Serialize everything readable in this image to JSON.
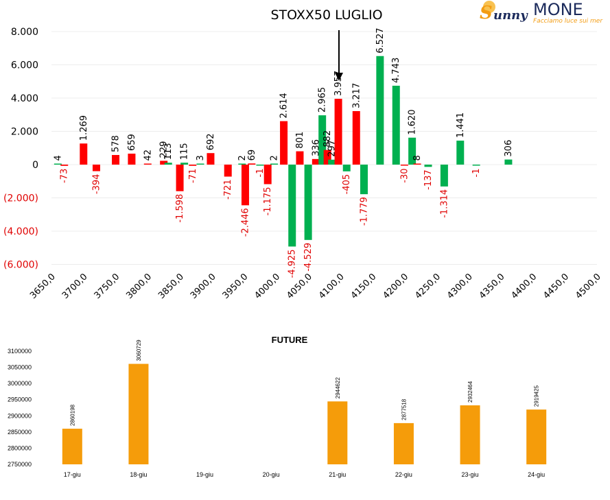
{
  "logo": {
    "brand_left": "unny",
    "brand_initial": "S",
    "brand_right": "MONE",
    "tagline": "Facciamo luce sui mer",
    "colors": {
      "orange": "#f39c12",
      "navy": "#1b2a5b"
    }
  },
  "chart_data": [
    {
      "type": "bar",
      "title": "STOXX50 LUGLIO",
      "annotation": "arrow pointing to strike 4100",
      "ylim": [
        -6000,
        8000
      ],
      "yticks": [
        {
          "value": 8000,
          "label": "8.000"
        },
        {
          "value": 6000,
          "label": "6.000"
        },
        {
          "value": 4000,
          "label": "4.000"
        },
        {
          "value": 2000,
          "label": "2.000"
        },
        {
          "value": 0,
          "label": "0"
        },
        {
          "value": -2000,
          "label": "(2.000)"
        },
        {
          "value": -4000,
          "label": "(4.000)"
        },
        {
          "value": -6000,
          "label": "(6.000)"
        }
      ],
      "categories": [
        "3650,0",
        "3700,0",
        "3750,0",
        "3800,0",
        "3850,0",
        "3900,0",
        "3950,0",
        "4000,0",
        "4050,0",
        "4100,0",
        "4150,0",
        "4200,0",
        "4250,0",
        "4300,0",
        "4350,0",
        "4400,0",
        "4450,0",
        "4500,0"
      ],
      "grid": true,
      "colors": {
        "call": "#ff0000",
        "put": "#00b050",
        "negative_label": "#e00000",
        "positive_label": "#000000"
      },
      "bars": [
        {
          "x": 3660,
          "value": 4,
          "label": "4",
          "color": "put"
        },
        {
          "x": 3670,
          "value": -73,
          "label": "-73",
          "color": "call"
        },
        {
          "x": 3700,
          "value": 1269,
          "label": "1.269",
          "color": "call"
        },
        {
          "x": 3720,
          "value": -394,
          "label": "-394",
          "color": "call"
        },
        {
          "x": 3750,
          "value": 578,
          "label": "578",
          "color": "call"
        },
        {
          "x": 3775,
          "value": 659,
          "label": "659",
          "color": "call"
        },
        {
          "x": 3800,
          "value": 42,
          "label": "42",
          "color": "call"
        },
        {
          "x": 3825,
          "value": 229,
          "label": "229",
          "color": "call"
        },
        {
          "x": 3832,
          "value": 113,
          "label": "113",
          "color": "put"
        },
        {
          "x": 3850,
          "value": -1598,
          "label": "-1.598",
          "color": "call"
        },
        {
          "x": 3857,
          "value": 115,
          "label": "115",
          "color": "put"
        },
        {
          "x": 3870,
          "value": -71,
          "label": "-71",
          "color": "call"
        },
        {
          "x": 3882,
          "value": 3,
          "label": "3",
          "color": "put"
        },
        {
          "x": 3898,
          "value": 692,
          "label": "692",
          "color": "call"
        },
        {
          "x": 3925,
          "value": -721,
          "label": "-721",
          "color": "call"
        },
        {
          "x": 3947,
          "value": 2,
          "label": "2",
          "color": "put"
        },
        {
          "x": 3952,
          "value": -2446,
          "label": "-2.446",
          "color": "call"
        },
        {
          "x": 3962,
          "value": 69,
          "label": "69",
          "color": "call"
        },
        {
          "x": 3975,
          "value": -1,
          "label": "-1",
          "color": "put"
        },
        {
          "x": 3987,
          "value": -1175,
          "label": "-1.175",
          "color": "call"
        },
        {
          "x": 3997,
          "value": 2,
          "label": "2",
          "color": "put"
        },
        {
          "x": 4012,
          "value": 2614,
          "label": "2.614",
          "color": "call"
        },
        {
          "x": 4025,
          "value": -4925,
          "label": "-4.925",
          "color": "put"
        },
        {
          "x": 4037,
          "value": 801,
          "label": "801",
          "color": "call"
        },
        {
          "x": 4050,
          "value": -4529,
          "label": "-4.529",
          "color": "put"
        },
        {
          "x": 4062,
          "value": 336,
          "label": "336",
          "color": "call"
        },
        {
          "x": 4072,
          "value": 2965,
          "label": "2.965",
          "color": "put"
        },
        {
          "x": 4080,
          "value": 882,
          "label": "882",
          "color": "call"
        },
        {
          "x": 4087,
          "value": 297,
          "label": "297",
          "color": "put"
        },
        {
          "x": 4097,
          "value": 3957,
          "label": "3.957",
          "color": "call"
        },
        {
          "x": 4110,
          "value": -405,
          "label": "-405",
          "color": "put"
        },
        {
          "x": 4125,
          "value": 3217,
          "label": "3.217",
          "color": "call"
        },
        {
          "x": 4137,
          "value": -1779,
          "label": "-1.779",
          "color": "put"
        },
        {
          "x": 4162,
          "value": 6527,
          "label": "6.527",
          "color": "put"
        },
        {
          "x": 4187,
          "value": 4743,
          "label": "4.743",
          "color": "put"
        },
        {
          "x": 4200,
          "value": -30,
          "label": "-30",
          "color": "call"
        },
        {
          "x": 4212,
          "value": 1620,
          "label": "1.620",
          "color": "put"
        },
        {
          "x": 4220,
          "value": 8,
          "label": "8",
          "color": "call"
        },
        {
          "x": 4237,
          "value": -137,
          "label": "-137",
          "color": "put"
        },
        {
          "x": 4262,
          "value": -1314,
          "label": "-1.314",
          "color": "put"
        },
        {
          "x": 4287,
          "value": 1441,
          "label": "1.441",
          "color": "put"
        },
        {
          "x": 4312,
          "value": -1,
          "label": "-1",
          "color": "put"
        },
        {
          "x": 4362,
          "value": 306,
          "label": "306",
          "color": "put"
        }
      ]
    },
    {
      "type": "bar",
      "title": "FUTURE",
      "ylim": [
        2750000,
        3100000
      ],
      "yticks": [
        "3100000",
        "3050000",
        "3000000",
        "2950000",
        "2900000",
        "2850000",
        "2800000",
        "2750000"
      ],
      "categories": [
        "17-giu",
        "18-giu",
        "19-giu",
        "20-giu",
        "21-giu",
        "22-giu",
        "23-giu",
        "24-giu"
      ],
      "values": [
        2860198,
        3060729,
        null,
        null,
        2944622,
        2877518,
        2932464,
        2919425
      ],
      "labels": [
        "2860198",
        "3060729",
        "",
        "",
        "2944622",
        "2877518",
        "2932464",
        "2919425"
      ],
      "color": "#f59c0a"
    }
  ]
}
